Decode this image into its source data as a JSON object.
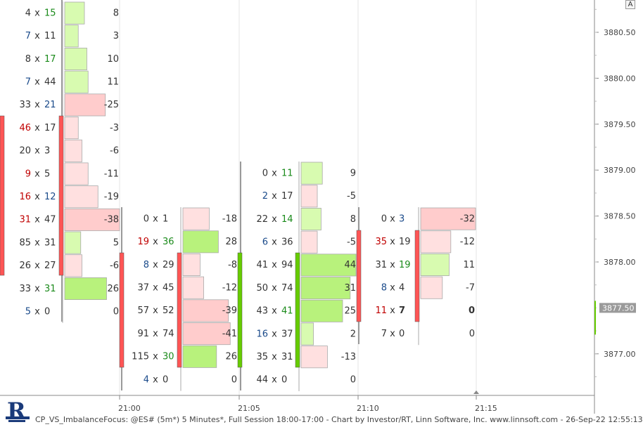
{
  "chart_data": {
    "type": "footprint",
    "title": "CP_VS_ImbalanceFocus: @ES# (5m*) 5 Minutes*, Full Session 18:00-17:00 - Chart by Investor/RT, Linn Software, Inc. www.linnsoft.com - 26-Sep-22 12:55:13",
    "price_axis": [
      "3880.50",
      "3880.00",
      "3879.50",
      "3879.00",
      "3878.50",
      "3878.00",
      "3877.00"
    ],
    "current_price": "3877.50",
    "time_axis": [
      "21:00",
      "21:05",
      "21:10",
      "21:15"
    ],
    "bars": [
      {
        "levels": [
          {
            "bid": "4",
            "ask": "15",
            "delta": "8"
          },
          {
            "bid": "7",
            "ask": "11",
            "delta": "3"
          },
          {
            "bid": "8",
            "ask": "17",
            "delta": "10"
          },
          {
            "bid": "7",
            "ask": "44",
            "delta": "11"
          },
          {
            "bid": "33",
            "ask": "21",
            "delta": "-25"
          },
          {
            "bid": "46",
            "ask": "17",
            "delta": "-3"
          },
          {
            "bid": "20",
            "ask": "3",
            "delta": "-6"
          },
          {
            "bid": "9",
            "ask": "5",
            "delta": "-11"
          },
          {
            "bid": "16",
            "ask": "12",
            "delta": "-19"
          },
          {
            "bid": "31",
            "ask": "47",
            "delta": "-38"
          },
          {
            "bid": "85",
            "ask": "31",
            "delta": "5"
          },
          {
            "bid": "26",
            "ask": "27",
            "delta": "-6"
          },
          {
            "bid": "33",
            "ask": "31",
            "delta": "26"
          },
          {
            "bid": "5",
            "ask": "0",
            "delta": "0"
          }
        ]
      },
      {
        "levels": [
          {
            "bid": "0",
            "ask": "1",
            "delta": "-18"
          },
          {
            "bid": "19",
            "ask": "36",
            "delta": "28"
          },
          {
            "bid": "8",
            "ask": "29",
            "delta": "-8"
          },
          {
            "bid": "37",
            "ask": "45",
            "delta": "-12"
          },
          {
            "bid": "57",
            "ask": "52",
            "delta": "-39"
          },
          {
            "bid": "91",
            "ask": "74",
            "delta": "-41"
          },
          {
            "bid": "115",
            "ask": "30",
            "delta": "26"
          },
          {
            "bid": "4",
            "ask": "0",
            "delta": "0"
          }
        ]
      },
      {
        "levels": [
          {
            "bid": "0",
            "ask": "11",
            "delta": "9"
          },
          {
            "bid": "2",
            "ask": "17",
            "delta": "-5"
          },
          {
            "bid": "22",
            "ask": "14",
            "delta": "8"
          },
          {
            "bid": "6",
            "ask": "36",
            "delta": "-5"
          },
          {
            "bid": "41",
            "ask": "94",
            "delta": "44"
          },
          {
            "bid": "50",
            "ask": "74",
            "delta": "31"
          },
          {
            "bid": "43",
            "ask": "41",
            "delta": "25"
          },
          {
            "bid": "16",
            "ask": "37",
            "delta": "2"
          },
          {
            "bid": "35",
            "ask": "31",
            "delta": "-13"
          },
          {
            "bid": "44",
            "ask": "0",
            "delta": "0"
          }
        ]
      },
      {
        "levels": [
          {
            "bid": "0",
            "ask": "3",
            "delta": "-32"
          },
          {
            "bid": "35",
            "ask": "19",
            "delta": "-12"
          },
          {
            "bid": "31",
            "ask": "19",
            "delta": "11"
          },
          {
            "bid": "8",
            "ask": "4",
            "delta": "-7"
          },
          {
            "bid": "11",
            "ask": "7",
            "delta": "0"
          },
          {
            "bid": "7",
            "ask": "0",
            "delta": "0"
          }
        ]
      }
    ]
  },
  "colors": {
    "bid_strong": "#c00000",
    "ask_strong": "#1a8a1a",
    "normal_blue": "#1a4a8a",
    "normal_dark": "#333333",
    "pos_fill": "#d8fbb0",
    "pos_fill_strong": "#b8f27c",
    "neg_fill": "#ffe0e0",
    "neg_fill_strong": "#ffcccc",
    "candle_up": "#66cc00",
    "candle_down": "#ff5555",
    "grid": "#e6e6e6",
    "axis": "#888888"
  },
  "ui": {
    "corner_label": "A",
    "logo_icon": "investor-rt-logo-icon"
  }
}
